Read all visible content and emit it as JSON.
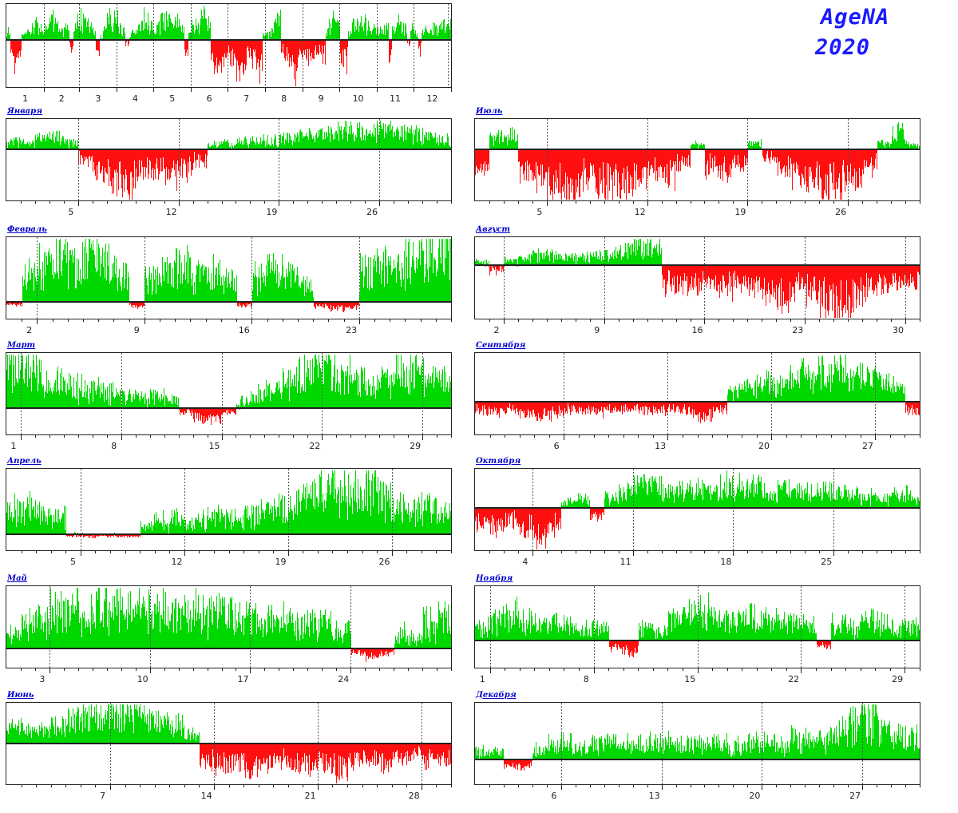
{
  "header": {
    "title_line1": "AgeNA",
    "title_line2": "2020"
  },
  "colors": {
    "positive_green": "#00d900",
    "negative_red": "#ff0f0f",
    "axis_black": "#222222",
    "grid_gray": "#555555",
    "month_label_blue": "#0000cc",
    "title_blue": "#1a1aff",
    "background": "#ffffff"
  },
  "chart_data": [
    {
      "id": "year-overview",
      "type": "bar",
      "title": "",
      "days": 366,
      "zero_frac": 0.43,
      "xticks": [
        "1",
        "2",
        "3",
        "4",
        "5",
        "6",
        "7",
        "8",
        "9",
        "10",
        "11",
        "12"
      ],
      "xlabel": "",
      "ylabel": "",
      "ylim": [
        -1,
        1
      ],
      "grid": "dashed-month-boundaries",
      "values": [
        0.3,
        -0.3,
        -0.7,
        -0.4,
        0.2,
        0.3,
        0.45,
        0.5,
        0.55,
        0.4,
        0.4,
        0.6,
        0.7,
        0.5,
        0.35,
        0.45,
        0.3,
        -0.2,
        0.55,
        0.65,
        0.8,
        0.6,
        0.45,
        0.3,
        -0.3,
        0.2,
        0.5,
        0.7,
        0.6,
        0.7,
        0.45,
        0.3,
        -0.1,
        0.2,
        0.3,
        0.4,
        0.5,
        0.75,
        0.8,
        0.45,
        0.4,
        0.6,
        0.7,
        0.75,
        0.7,
        0.65,
        0.55,
        0.5,
        -0.3,
        0.4,
        0.45,
        0.55,
        0.75,
        0.8,
        0.6,
        -0.4,
        -0.55,
        -0.6,
        -0.65,
        -0.45,
        -0.5,
        -0.7,
        -0.8,
        -0.75,
        -0.55,
        -0.3,
        -0.45,
        -0.6,
        -0.75,
        0.3,
        0.2,
        0.4,
        0.5,
        0.8,
        -0.4,
        -0.45,
        -0.6,
        -0.8,
        -0.5,
        -0.4,
        -0.3,
        -0.4,
        -0.35,
        -0.3,
        -0.35,
        -0.4,
        0.3,
        0.5,
        0.7,
        0.5,
        -0.5,
        -0.6,
        0.3,
        0.6,
        0.6,
        0.65,
        0.6,
        0.55,
        0.45,
        0.4,
        0.4,
        0.5,
        0.35,
        -0.4,
        0.35,
        0.55,
        0.5,
        0.45,
        -0.2,
        0.35,
        0.2,
        -0.3,
        0.3,
        0.35,
        0.35,
        0.4,
        0.35,
        0.45,
        0.7,
        0.5
      ]
    },
    {
      "id": "january",
      "type": "bar",
      "title": "Января",
      "days": 31,
      "zero_frac": 0.37,
      "xticks": [
        5,
        12,
        19,
        26
      ],
      "ylim": [
        -1,
        1
      ],
      "values": [
        0.35,
        0.3,
        0.45,
        0.5,
        0.3,
        -0.25,
        -0.55,
        -0.75,
        -0.85,
        -0.5,
        -0.45,
        -0.6,
        -0.5,
        -0.3,
        0.2,
        0.25,
        0.3,
        0.35,
        0.4,
        0.45,
        0.5,
        0.55,
        0.7,
        0.8,
        0.75,
        0.8,
        0.85,
        0.7,
        0.6,
        0.5,
        0.4
      ]
    },
    {
      "id": "february",
      "type": "bar",
      "title": "Февраль",
      "days": 29,
      "zero_frac": 0.79,
      "xticks": [
        2,
        9,
        16,
        23
      ],
      "ylim": [
        -1,
        1
      ],
      "values": [
        -0.2,
        0.5,
        0.7,
        0.85,
        0.8,
        0.9,
        0.75,
        0.6,
        -0.3,
        0.45,
        0.6,
        0.7,
        0.5,
        0.55,
        0.4,
        -0.25,
        0.5,
        0.6,
        0.45,
        0.35,
        -0.3,
        -0.45,
        -0.35,
        0.6,
        0.75,
        0.7,
        0.85,
        0.9,
        0.95
      ]
    },
    {
      "id": "march",
      "type": "bar",
      "title": "Март",
      "days": 31,
      "zero_frac": 0.68,
      "xticks": [
        1,
        8,
        15,
        22,
        29
      ],
      "ylim": [
        -1,
        1
      ],
      "values": [
        0.95,
        0.9,
        0.8,
        0.65,
        0.5,
        0.45,
        0.4,
        0.35,
        0.3,
        0.25,
        0.3,
        0.2,
        -0.2,
        -0.45,
        -0.5,
        -0.2,
        0.15,
        0.3,
        0.4,
        0.6,
        0.75,
        0.9,
        0.85,
        0.8,
        0.6,
        0.5,
        0.65,
        0.8,
        0.9,
        0.75,
        0.6
      ]
    },
    {
      "id": "april",
      "type": "bar",
      "title": "Апрель",
      "days": 30,
      "zero_frac": 0.8,
      "xticks": [
        5,
        12,
        19,
        26
      ],
      "ylim": [
        -1,
        1
      ],
      "values": [
        0.45,
        0.55,
        0.4,
        0.3,
        -0.1,
        -0.15,
        -0.1,
        -0.12,
        -0.08,
        0.2,
        0.25,
        0.3,
        0.25,
        0.3,
        0.35,
        0.3,
        0.4,
        0.45,
        0.5,
        0.55,
        0.7,
        0.85,
        0.9,
        0.8,
        0.9,
        0.7,
        0.5,
        0.45,
        0.5,
        0.4
      ]
    },
    {
      "id": "may",
      "type": "bar",
      "title": "Май",
      "days": 31,
      "zero_frac": 0.76,
      "xticks": [
        3,
        10,
        17,
        24
      ],
      "ylim": [
        -1,
        1
      ],
      "values": [
        0.3,
        0.5,
        0.6,
        0.75,
        0.8,
        0.7,
        0.85,
        0.8,
        0.75,
        0.8,
        0.85,
        0.7,
        0.75,
        0.8,
        0.7,
        0.65,
        0.7,
        0.6,
        0.55,
        0.6,
        0.5,
        0.55,
        0.5,
        0.35,
        -0.25,
        -0.5,
        -0.3,
        0.3,
        0.2,
        0.5,
        0.6
      ]
    },
    {
      "id": "june",
      "type": "bar",
      "title": "Июнь",
      "days": 30,
      "zero_frac": 0.5,
      "xticks": [
        7,
        14,
        21,
        28
      ],
      "ylim": [
        -1,
        1
      ],
      "values": [
        0.5,
        0.4,
        0.45,
        0.55,
        0.7,
        0.8,
        0.9,
        0.95,
        0.85,
        0.8,
        0.7,
        0.6,
        0.3,
        -0.5,
        -0.6,
        -0.55,
        -0.7,
        -0.6,
        -0.5,
        -0.65,
        -0.7,
        -0.6,
        -0.75,
        -0.5,
        -0.55,
        -0.6,
        -0.4,
        -0.3,
        -0.5,
        -0.45
      ]
    },
    {
      "id": "july",
      "type": "bar",
      "title": "Июль",
      "days": 31,
      "zero_frac": 0.37,
      "xticks": [
        5,
        12,
        19,
        26
      ],
      "ylim": [
        -1,
        1
      ],
      "values": [
        -0.4,
        0.5,
        0.6,
        -0.5,
        -0.7,
        -0.85,
        -0.9,
        -0.8,
        -0.75,
        -0.85,
        -0.9,
        -0.7,
        -0.5,
        -0.6,
        -0.4,
        0.2,
        -0.45,
        -0.55,
        -0.3,
        0.25,
        -0.2,
        -0.5,
        -0.65,
        -0.7,
        -0.9,
        -0.85,
        -0.6,
        -0.4,
        0.3,
        0.7,
        0.2
      ]
    },
    {
      "id": "august",
      "type": "bar",
      "title": "Август",
      "days": 31,
      "zero_frac": 0.34,
      "xticks": [
        2,
        9,
        16,
        23,
        30
      ],
      "ylim": [
        -1,
        1
      ],
      "values": [
        0.15,
        -0.1,
        0.2,
        0.35,
        0.5,
        0.45,
        0.4,
        0.35,
        0.45,
        0.55,
        0.7,
        0.9,
        0.95,
        -0.4,
        -0.5,
        -0.45,
        -0.35,
        -0.5,
        -0.4,
        -0.45,
        -0.55,
        -0.7,
        -0.5,
        -0.6,
        -0.8,
        -0.9,
        -0.75,
        -0.5,
        -0.45,
        -0.4,
        -0.35
      ]
    },
    {
      "id": "september",
      "type": "bar",
      "title": "Сентября",
      "days": 30,
      "zero_frac": 0.6,
      "xticks": [
        6,
        13,
        20,
        27
      ],
      "ylim": [
        -1,
        1
      ],
      "values": [
        -0.3,
        -0.35,
        -0.3,
        -0.4,
        -0.5,
        -0.45,
        -0.35,
        -0.3,
        -0.35,
        -0.3,
        -0.25,
        -0.3,
        -0.35,
        -0.25,
        -0.4,
        -0.55,
        -0.3,
        0.25,
        0.4,
        0.5,
        0.45,
        0.55,
        0.7,
        0.8,
        0.9,
        0.7,
        0.6,
        0.5,
        0.4,
        -0.35
      ]
    },
    {
      "id": "october",
      "type": "bar",
      "title": "Октября",
      "days": 31,
      "zero_frac": 0.48,
      "xticks": [
        4,
        11,
        18,
        25
      ],
      "ylim": [
        -1,
        1
      ],
      "values": [
        -0.45,
        -0.55,
        -0.4,
        -0.6,
        -0.8,
        -0.5,
        0.2,
        0.3,
        -0.2,
        0.35,
        0.5,
        0.85,
        0.7,
        0.5,
        0.6,
        0.65,
        0.5,
        0.75,
        0.8,
        0.7,
        0.5,
        0.6,
        0.55,
        0.5,
        0.6,
        0.45,
        0.4,
        0.35,
        0.3,
        0.4,
        0.45
      ]
    },
    {
      "id": "november",
      "type": "bar",
      "title": "Ноября",
      "days": 30,
      "zero_frac": 0.67,
      "xticks": [
        1,
        8,
        15,
        22,
        29
      ],
      "ylim": [
        -1,
        1
      ],
      "values": [
        0.3,
        0.5,
        0.6,
        0.45,
        0.35,
        0.4,
        0.35,
        0.3,
        0.25,
        -0.35,
        -0.5,
        0.3,
        0.2,
        0.45,
        0.6,
        0.7,
        0.5,
        0.45,
        0.55,
        0.5,
        0.45,
        0.4,
        0.35,
        -0.2,
        0.35,
        0.3,
        0.5,
        0.4,
        0.3,
        0.35
      ]
    },
    {
      "id": "december",
      "type": "bar",
      "title": "Декабря",
      "days": 31,
      "zero_frac": 0.7,
      "xticks": [
        6,
        13,
        20,
        27
      ],
      "ylim": [
        -1,
        1
      ],
      "values": [
        0.2,
        0.15,
        -0.3,
        -0.35,
        0.25,
        0.3,
        0.35,
        0.3,
        0.35,
        0.4,
        0.35,
        0.3,
        0.4,
        0.35,
        0.3,
        0.35,
        0.4,
        0.35,
        0.3,
        0.4,
        0.35,
        0.3,
        0.45,
        0.4,
        0.5,
        0.6,
        0.8,
        0.95,
        0.6,
        0.5,
        0.45
      ]
    }
  ]
}
